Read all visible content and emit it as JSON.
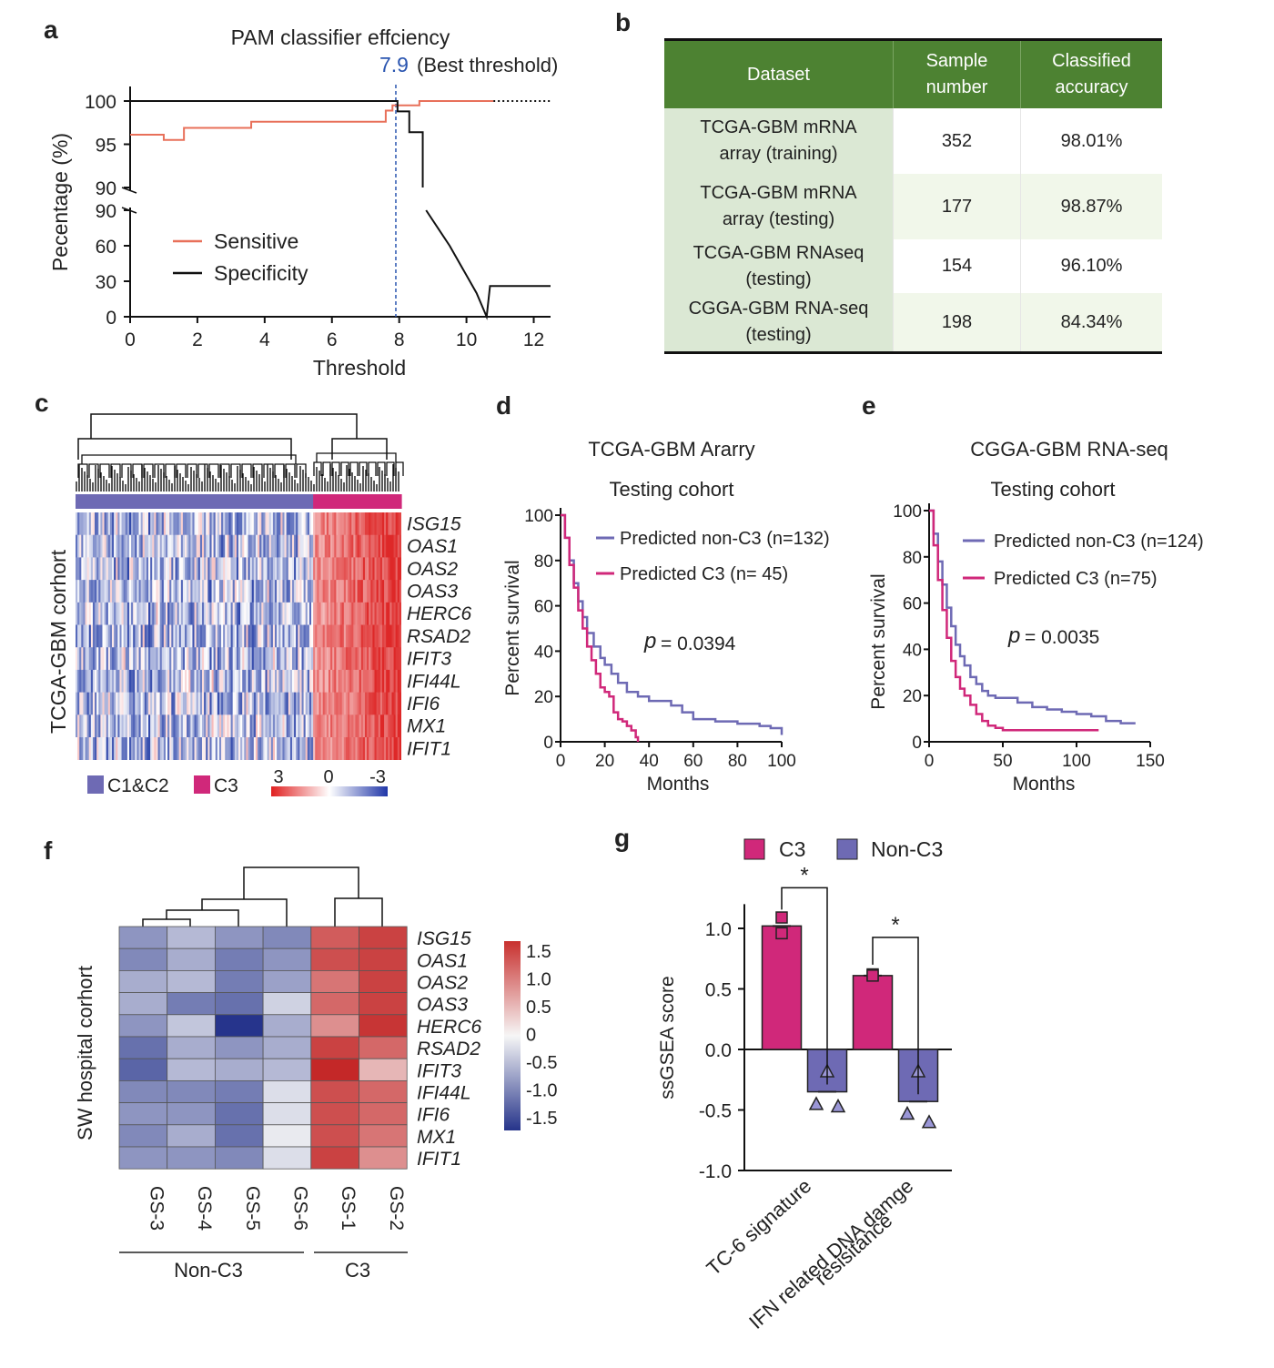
{
  "panel_labels": {
    "a": "a",
    "b": "b",
    "c": "c",
    "d": "d",
    "e": "e",
    "f": "f",
    "g": "g"
  },
  "colors": {
    "c3_pink": "#d0287a",
    "nonc3_purple": "#6e6ab4",
    "sensitive_red": "#e8705a",
    "table_green": "#4d8232",
    "heat_red": "#d73c30",
    "heat_blue": "#2c3a8e"
  },
  "chart_data": [
    {
      "id": "a",
      "type": "line",
      "title": "PAM classifier effciency",
      "xlabel": "Threshold",
      "ylabel": "Pecentage (%)",
      "annotation": {
        "value": "7.9",
        "text": "(Best  threshold)",
        "x": 7.9
      },
      "x_ticks": [
        "0",
        "2",
        "4",
        "6",
        "8",
        "10",
        "12"
      ],
      "y_ticks_upper": [
        "90",
        "95",
        "100"
      ],
      "y_ticks_lower": [
        "0",
        "30",
        "60",
        "90"
      ],
      "xlim": [
        0,
        12.5
      ],
      "series": [
        {
          "name": "Sensitive",
          "color": "#e8705a",
          "x": [
            0,
            1,
            1.5,
            1.6,
            3.6,
            7.6,
            7.8,
            8.6,
            10.8
          ],
          "y": [
            96.1,
            95.5,
            95.5,
            96.9,
            97.6,
            98.9,
            99.5,
            100,
            100
          ]
        },
        {
          "name": "Specificity",
          "color": "#111111",
          "x": [
            0,
            7.8,
            7.95,
            8.3,
            8.7,
            8.8,
            9.5,
            10.3,
            10.6,
            10.7,
            12.5
          ],
          "y": [
            100,
            100,
            98.8,
            96.4,
            90,
            90,
            60,
            20,
            0,
            26,
            26
          ]
        }
      ]
    },
    {
      "id": "c",
      "type": "heatmap",
      "ylabel": "TCGA-GBM corhort",
      "rows": [
        "ISG15",
        "OAS1",
        "OAS2",
        "OAS3",
        "HERC6",
        "RSAD2",
        "IFIT3",
        "IFI44L",
        "IFI6",
        "MX1",
        "IFIT1"
      ],
      "groups": [
        {
          "name": "C1&C2",
          "color": "#6e6ab4"
        },
        {
          "name": "C3",
          "color": "#d0287a"
        }
      ],
      "scale_labels": [
        "3",
        "0",
        "-3"
      ]
    },
    {
      "id": "d",
      "type": "line",
      "title": "TCGA-GBM Ararry",
      "subtitle": "Testing cohort",
      "xlabel": "Months",
      "ylabel": "Percent survival",
      "x_ticks": [
        "0",
        "20",
        "40",
        "60",
        "80",
        "100"
      ],
      "y_ticks": [
        "0",
        "20",
        "40",
        "60",
        "80",
        "100"
      ],
      "xlim": [
        0,
        100
      ],
      "ylim": [
        0,
        100
      ],
      "p_label": "p",
      "p_value": "= 0.0394",
      "series": [
        {
          "name": "Predicted non-C3 (n=132)",
          "color": "#6e6ab4",
          "x": [
            0,
            2,
            4,
            6,
            8,
            10,
            12,
            15,
            18,
            20,
            23,
            26,
            30,
            35,
            40,
            45,
            50,
            55,
            60,
            70,
            80,
            90,
            95,
            100
          ],
          "y": [
            100,
            90,
            80,
            70,
            62,
            55,
            48,
            42,
            37,
            34,
            30,
            26,
            22,
            20,
            18,
            18,
            16,
            13,
            10,
            9,
            8,
            7,
            6,
            3
          ]
        },
        {
          "name": "Predicted C3 (n= 45)",
          "color": "#d0287a",
          "x": [
            0,
            2,
            4,
            6,
            8,
            10,
            12,
            14,
            16,
            18,
            20,
            22,
            24,
            26,
            28,
            30,
            32,
            34,
            35
          ],
          "y": [
            100,
            90,
            78,
            68,
            58,
            50,
            42,
            36,
            30,
            24,
            22,
            20,
            13,
            10,
            9,
            7,
            5,
            2,
            0
          ]
        }
      ]
    },
    {
      "id": "e",
      "type": "line",
      "title": "CGGA-GBM RNA-seq",
      "subtitle": "Testing cohort",
      "xlabel": "Months",
      "ylabel": "Percent survival",
      "x_ticks": [
        "0",
        "50",
        "100",
        "150"
      ],
      "y_ticks": [
        "0",
        "20",
        "40",
        "60",
        "80",
        "100"
      ],
      "xlim": [
        0,
        150
      ],
      "ylim": [
        0,
        100
      ],
      "p_label": "p",
      "p_value": "= 0.0035",
      "series": [
        {
          "name": "Predicted non-C3 (n=124)",
          "color": "#6e6ab4",
          "x": [
            0,
            3,
            6,
            9,
            12,
            15,
            18,
            21,
            24,
            28,
            32,
            36,
            40,
            45,
            50,
            60,
            70,
            80,
            90,
            100,
            110,
            120,
            130,
            140
          ],
          "y": [
            100,
            90,
            78,
            68,
            58,
            50,
            42,
            37,
            33,
            28,
            25,
            22,
            20,
            19,
            19,
            17,
            15,
            14,
            13,
            12,
            11,
            9,
            8,
            8
          ]
        },
        {
          "name": "Predicted C3 (n=75)",
          "color": "#d0287a",
          "x": [
            0,
            3,
            6,
            9,
            12,
            15,
            18,
            21,
            24,
            28,
            32,
            36,
            40,
            45,
            50,
            60,
            80,
            100,
            115
          ],
          "y": [
            100,
            85,
            70,
            57,
            45,
            35,
            28,
            23,
            20,
            16,
            12,
            9,
            7,
            6,
            5,
            5,
            5,
            5,
            5
          ]
        }
      ]
    },
    {
      "id": "f",
      "type": "heatmap",
      "ylabel": "SW hospital corhort",
      "rows": [
        "ISG15",
        "OAS1",
        "OAS2",
        "OAS3",
        "HERC6",
        "RSAD2",
        "IFIT3",
        "IFI44L",
        "IFI6",
        "MX1",
        "IFIT1"
      ],
      "columns": [
        "GS-3",
        "GS-4",
        "GS-5",
        "GS-6",
        "GS-1",
        "GS-2"
      ],
      "groups": [
        "Non-C3",
        "C3"
      ],
      "scale_ticks": [
        "1.5",
        "1.0",
        "0.5",
        "0",
        "-0.5",
        "-1.0",
        "-1.5"
      ],
      "values": [
        [
          -0.8,
          -0.5,
          -0.8,
          -0.9,
          1.2,
          1.4
        ],
        [
          -0.9,
          -0.6,
          -1.0,
          -0.8,
          1.3,
          1.4
        ],
        [
          -0.6,
          -0.5,
          -1.0,
          -0.7,
          1.0,
          1.4
        ],
        [
          -0.6,
          -1.0,
          -1.1,
          -0.3,
          1.1,
          1.4
        ],
        [
          -0.8,
          -0.4,
          -1.6,
          -0.6,
          0.8,
          1.5
        ],
        [
          -1.1,
          -0.6,
          -0.8,
          -0.6,
          1.4,
          1.1
        ],
        [
          -1.2,
          -0.5,
          -0.6,
          -0.5,
          1.6,
          0.5
        ],
        [
          -0.9,
          -0.9,
          -1.0,
          -0.2,
          1.3,
          1.1
        ],
        [
          -0.8,
          -0.8,
          -1.1,
          -0.2,
          1.3,
          1.1
        ],
        [
          -0.9,
          -0.6,
          -1.1,
          -0.1,
          1.3,
          1.0
        ],
        [
          -0.8,
          -0.8,
          -0.9,
          -0.2,
          1.4,
          0.8
        ]
      ]
    },
    {
      "id": "g",
      "type": "bar",
      "ylabel": "ssGSEA score",
      "categories": [
        "TC-6 signature",
        "IFN related DNA damge resisitance"
      ],
      "y_ticks": [
        "1.0",
        "0.5",
        "0.0",
        "-0.5",
        "-1.0"
      ],
      "ylim": [
        -1.0,
        1.2
      ],
      "significance": "*",
      "series": [
        {
          "name": "C3",
          "color": "#d0287a",
          "values": [
            1.02,
            0.61
          ],
          "points": [
            [
              1.09,
              0.96
            ],
            [
              0.62,
              0.61
            ]
          ]
        },
        {
          "name": "Non-C3",
          "color": "#6e6ab4",
          "values": [
            -0.35,
            -0.43
          ],
          "points": [
            [
              -0.18,
              -0.45,
              -0.47
            ],
            [
              -0.18,
              -0.53,
              -0.6
            ]
          ]
        }
      ]
    }
  ],
  "table": {
    "headers": [
      "Dataset",
      "Sample number",
      "Classified accuracy"
    ],
    "rows": [
      [
        "TCGA-GBM mRNA array (training)",
        "352",
        "98.01%"
      ],
      [
        "TCGA-GBM mRNA array (testing)",
        "177",
        "98.87%"
      ],
      [
        "TCGA-GBM RNAseq (testing)",
        "154",
        "96.10%"
      ],
      [
        "CGGA-GBM RNA-seq (testing)",
        "198",
        "84.34%"
      ]
    ]
  }
}
